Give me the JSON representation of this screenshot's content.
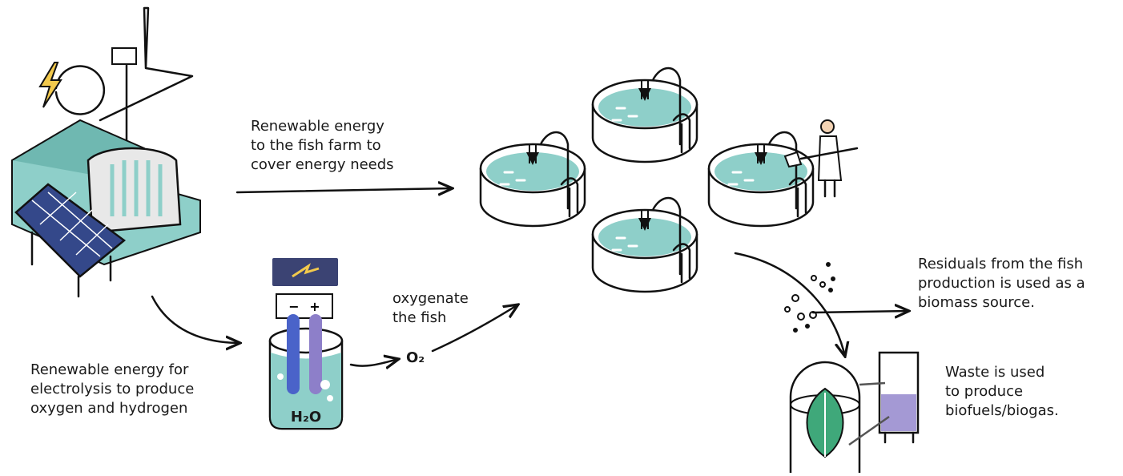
{
  "labels": {
    "farm_energy": [
      "Renewable energy",
      "to the fish farm to",
      "cover energy needs"
    ],
    "oxygenate": [
      "oxygenate",
      "the fish"
    ],
    "oxygen": "O₂",
    "electrolysis": [
      "Renewable energy for",
      "electrolysis to produce",
      "oxygen and hydrogen"
    ],
    "water": "H₂O",
    "battery_minus": "−",
    "battery_plus": "+",
    "residuals": [
      "Residuals from the fish",
      "production is used as a",
      "biomass source."
    ],
    "waste": [
      "Waste is used",
      "to produce",
      "biofuels/biogas."
    ]
  }
}
